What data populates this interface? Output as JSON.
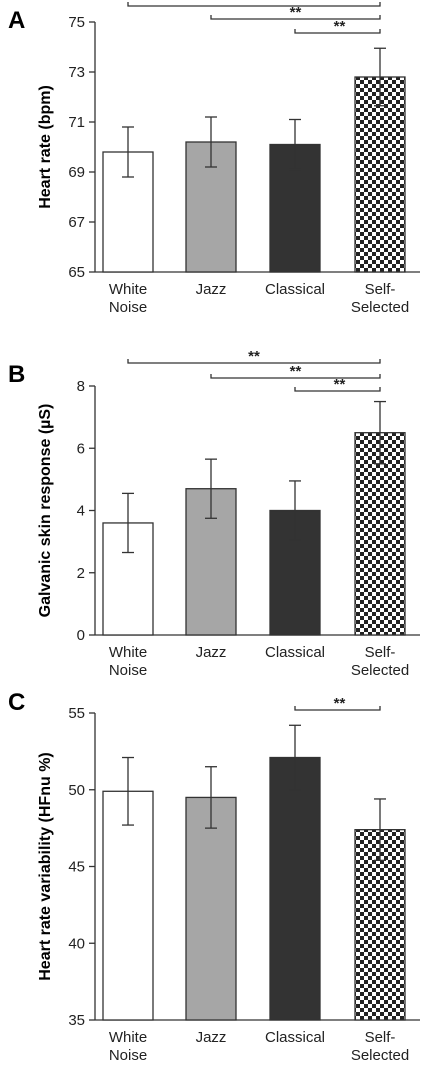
{
  "chart_data": [
    {
      "type": "bar",
      "panel": "A",
      "ylabel": "Heart rate (bpm)",
      "categories": [
        [
          "White",
          "Noise"
        ],
        [
          "Jazz"
        ],
        [
          "Classical"
        ],
        [
          "Self-",
          "Selected"
        ]
      ],
      "values": [
        69.8,
        70.2,
        70.1,
        72.8
      ],
      "errors": [
        1.0,
        1.0,
        1.0,
        1.15
      ],
      "ylim": [
        65,
        75
      ],
      "yticks": [
        "65",
        "67",
        "69",
        "71",
        "73",
        "75"
      ],
      "significance": [
        {
          "from": 0,
          "to": 3,
          "label": "**"
        },
        {
          "from": 1,
          "to": 3,
          "label": "**"
        },
        {
          "from": 2,
          "to": 3,
          "label": "**"
        }
      ]
    },
    {
      "type": "bar",
      "panel": "B",
      "ylabel": "Galvanic skin response (µS)",
      "categories": [
        [
          "White",
          "Noise"
        ],
        [
          "Jazz"
        ],
        [
          "Classical"
        ],
        [
          "Self-",
          "Selected"
        ]
      ],
      "values": [
        3.6,
        4.7,
        4.0,
        6.5
      ],
      "errors": [
        0.95,
        0.95,
        0.95,
        1.0
      ],
      "ylim": [
        0,
        8
      ],
      "yticks": [
        "0",
        "2",
        "4",
        "6",
        "8"
      ],
      "significance": [
        {
          "from": 0,
          "to": 3,
          "label": "**"
        },
        {
          "from": 1,
          "to": 3,
          "label": "**"
        },
        {
          "from": 2,
          "to": 3,
          "label": "**"
        }
      ]
    },
    {
      "type": "bar",
      "panel": "C",
      "ylabel": "Heart rate variability (HFnu %)",
      "categories": [
        [
          "White",
          "Noise"
        ],
        [
          "Jazz"
        ],
        [
          "Classical"
        ],
        [
          "Self-",
          "Selected"
        ]
      ],
      "values": [
        49.9,
        49.5,
        52.1,
        47.4
      ],
      "errors": [
        2.2,
        2.0,
        2.1,
        2.0
      ],
      "ylim": [
        35,
        55
      ],
      "yticks": [
        "35",
        "40",
        "45",
        "50",
        "55"
      ],
      "significance": [
        {
          "from": 2,
          "to": 3,
          "label": "**"
        }
      ]
    }
  ],
  "bar_colors": [
    "#ffffff",
    "#a6a6a6",
    "#333333",
    "checker"
  ]
}
